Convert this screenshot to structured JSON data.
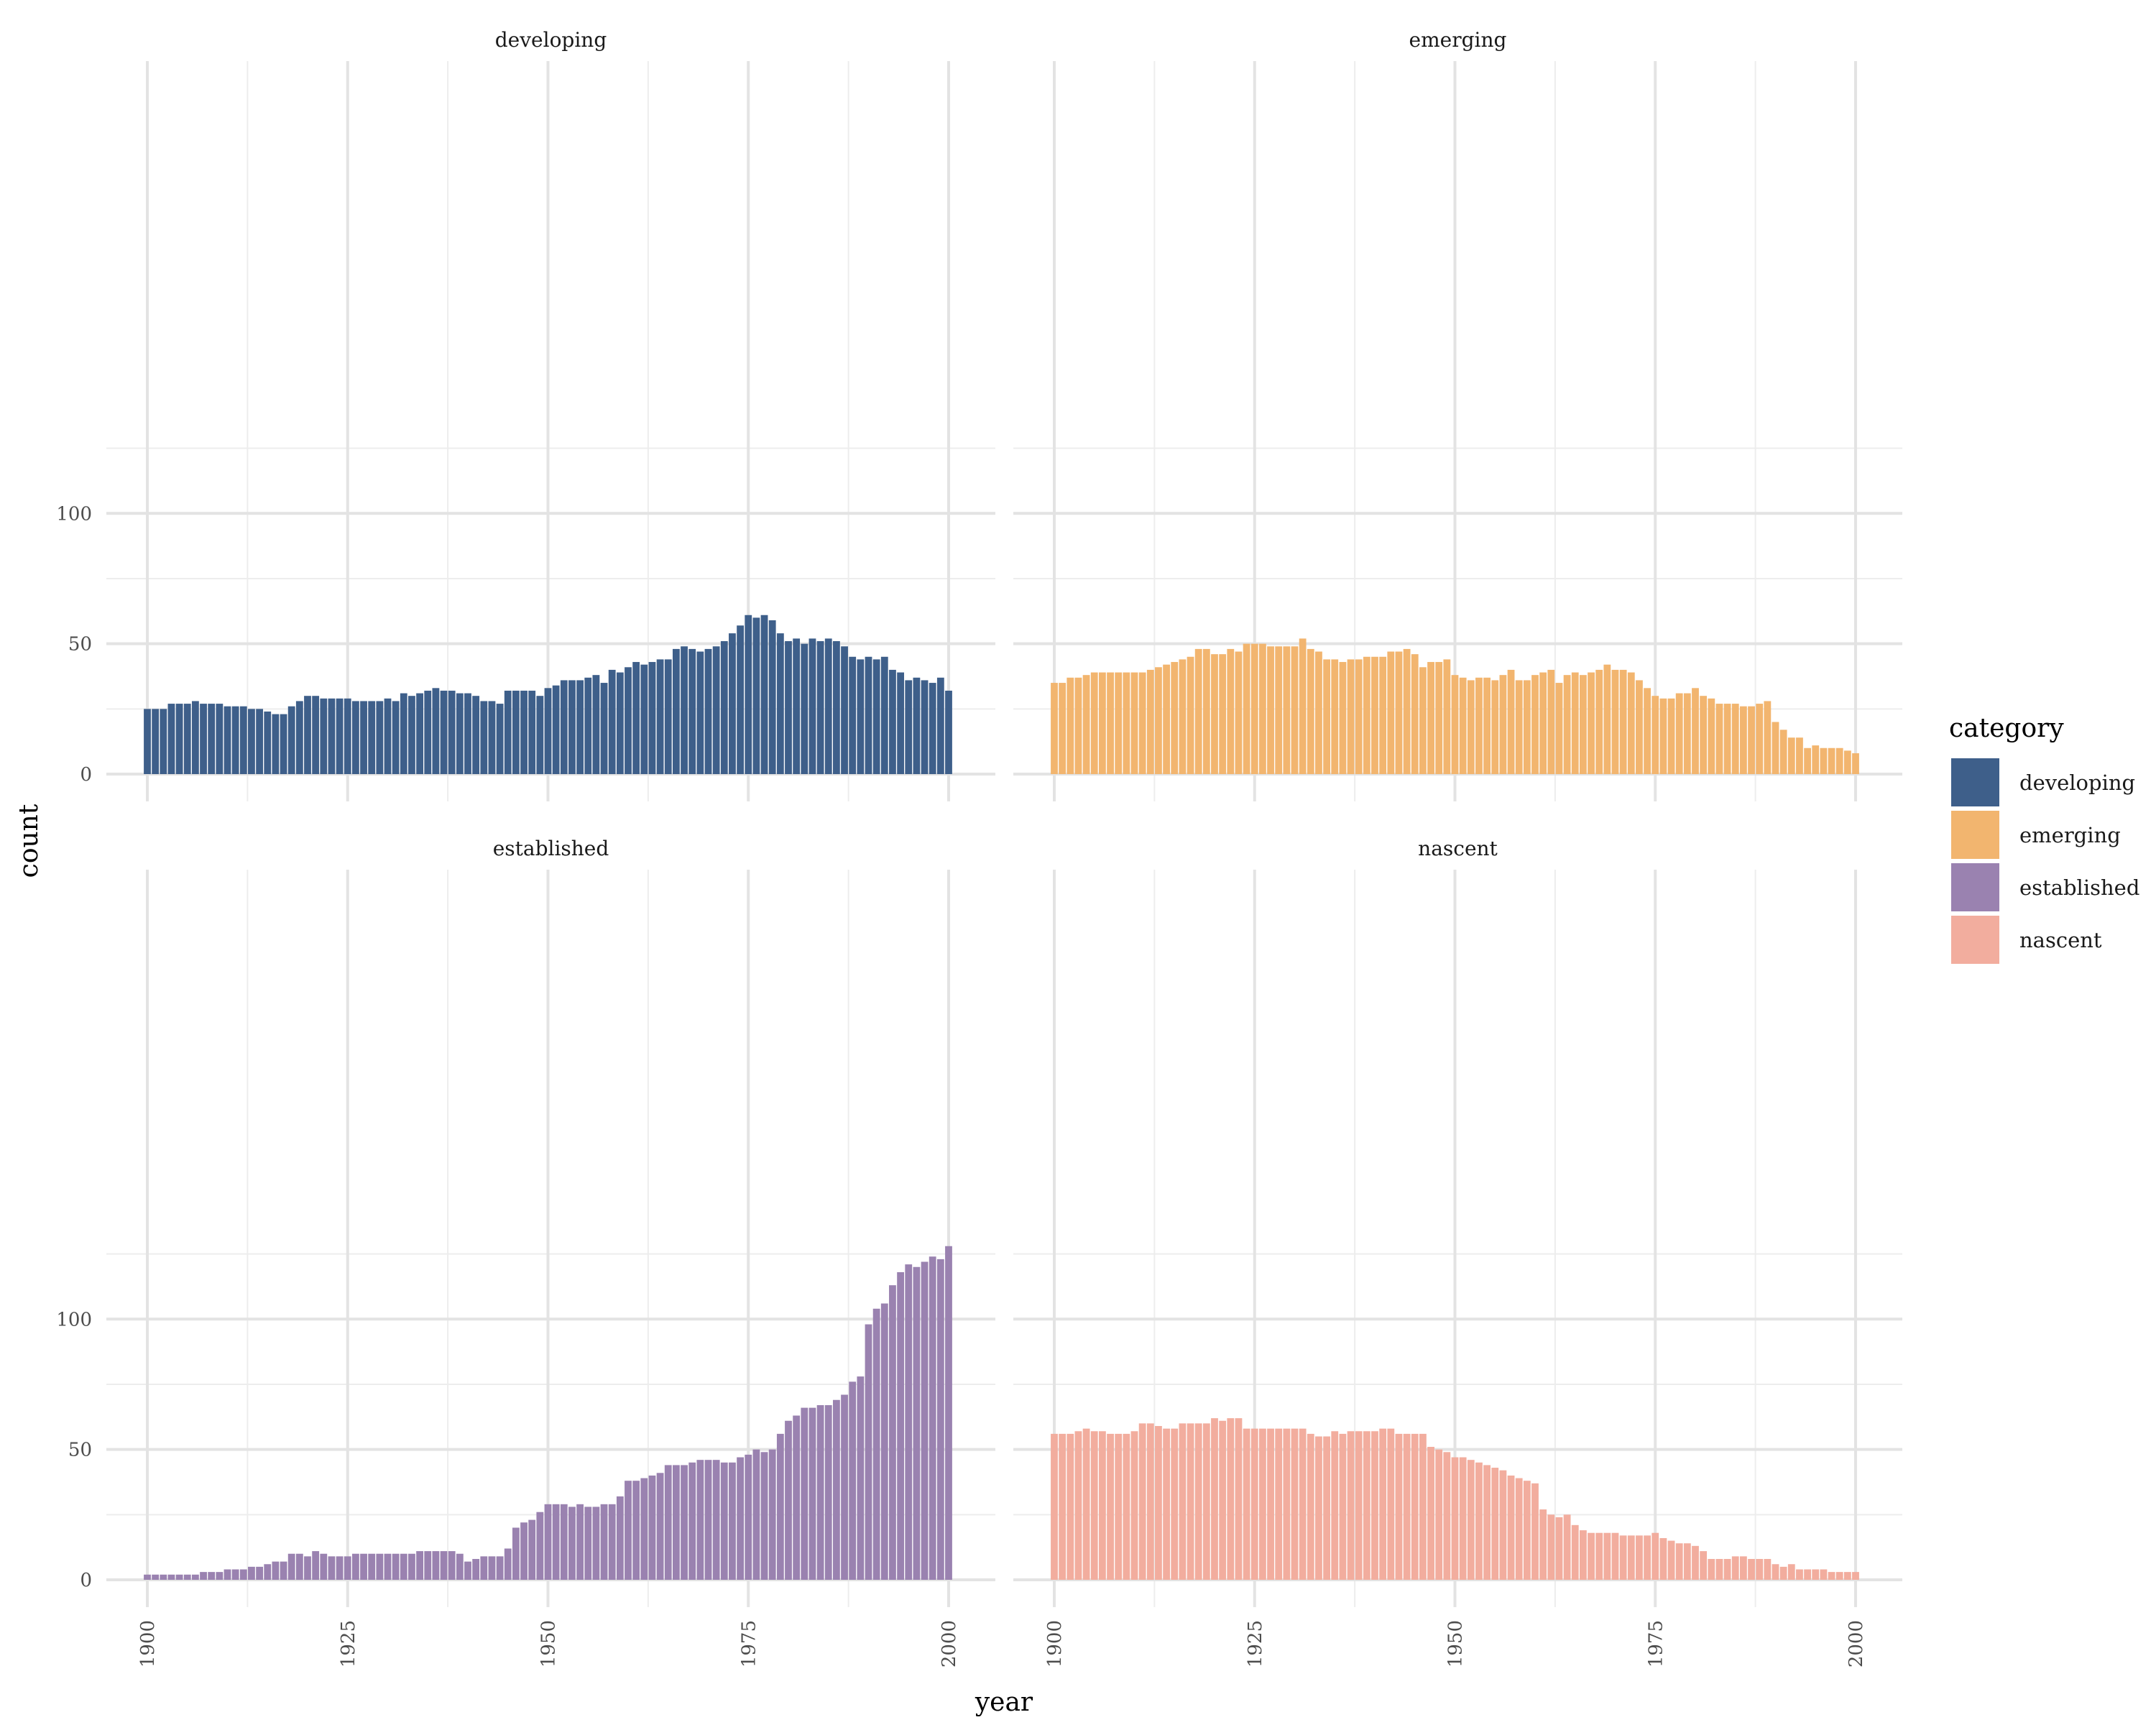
{
  "chart_data": {
    "type": "bar",
    "facet_layout": "2x2 grid",
    "xlabel": "year",
    "ylabel": "count",
    "x_ticks": [
      1900,
      1925,
      1950,
      1975,
      2000
    ],
    "y_ticks": [
      0,
      50,
      100
    ],
    "xlim": [
      1900,
      2000
    ],
    "ylim": [
      0,
      130
    ],
    "grid": true,
    "legend": {
      "title": "category",
      "position": "right",
      "entries": [
        {
          "label": "developing",
          "color": "#3E5F8A"
        },
        {
          "label": "emerging",
          "color": "#F2B56F"
        },
        {
          "label": "established",
          "color": "#9A82B0"
        },
        {
          "label": "nascent",
          "color": "#F2AD9E"
        }
      ]
    },
    "x_start": 1900,
    "panels": [
      {
        "title": "developing",
        "color": "#3E5F8A",
        "values": [
          25,
          25,
          25,
          27,
          27,
          27,
          28,
          27,
          27,
          27,
          26,
          26,
          26,
          25,
          25,
          24,
          23,
          23,
          26,
          28,
          30,
          30,
          29,
          29,
          29,
          29,
          28,
          28,
          28,
          28,
          29,
          28,
          31,
          30,
          31,
          32,
          33,
          32,
          32,
          31,
          31,
          30,
          28,
          28,
          27,
          32,
          32,
          32,
          32,
          30,
          33,
          34,
          36,
          36,
          36,
          37,
          38,
          35,
          40,
          39,
          41,
          43,
          42,
          43,
          44,
          44,
          48,
          49,
          48,
          47,
          48,
          49,
          51,
          54,
          57,
          61,
          60,
          61,
          59,
          54,
          51,
          52,
          50,
          52,
          51,
          52,
          51,
          49,
          45,
          44,
          45,
          44,
          45,
          40,
          39,
          36,
          37,
          36,
          35,
          37,
          32
        ]
      },
      {
        "title": "emerging",
        "color": "#F2B56F",
        "values": [
          35,
          35,
          37,
          37,
          38,
          39,
          39,
          39,
          39,
          39,
          39,
          39,
          40,
          41,
          42,
          43,
          44,
          45,
          48,
          48,
          46,
          46,
          48,
          47,
          50,
          50,
          50,
          49,
          49,
          49,
          49,
          52,
          48,
          47,
          44,
          44,
          43,
          44,
          44,
          45,
          45,
          45,
          47,
          47,
          48,
          46,
          41,
          43,
          43,
          44,
          38,
          37,
          36,
          37,
          37,
          36,
          38,
          40,
          36,
          36,
          38,
          39,
          40,
          35,
          38,
          39,
          38,
          39,
          40,
          42,
          40,
          40,
          39,
          36,
          33,
          30,
          29,
          29,
          31,
          31,
          33,
          30,
          29,
          27,
          27,
          27,
          26,
          26,
          27,
          28,
          20,
          17,
          14,
          14,
          10,
          11,
          10,
          10,
          10,
          9,
          8
        ]
      },
      {
        "title": "established",
        "color": "#9A82B0",
        "values": [
          2,
          2,
          2,
          2,
          2,
          2,
          2,
          3,
          3,
          3,
          4,
          4,
          4,
          5,
          5,
          6,
          7,
          7,
          10,
          10,
          9,
          11,
          10,
          9,
          9,
          9,
          10,
          10,
          10,
          10,
          10,
          10,
          10,
          10,
          11,
          11,
          11,
          11,
          11,
          10,
          7,
          8,
          9,
          9,
          9,
          12,
          20,
          22,
          23,
          26,
          29,
          29,
          29,
          28,
          29,
          28,
          28,
          29,
          29,
          32,
          38,
          38,
          39,
          40,
          41,
          44,
          44,
          44,
          45,
          46,
          46,
          46,
          45,
          45,
          47,
          48,
          50,
          49,
          50,
          56,
          61,
          63,
          66,
          66,
          67,
          67,
          69,
          71,
          76,
          78,
          98,
          104,
          106,
          113,
          118,
          121,
          120,
          122,
          124,
          123,
          128
        ]
      },
      {
        "title": "nascent",
        "color": "#F2AD9E",
        "values": [
          56,
          56,
          56,
          57,
          58,
          57,
          57,
          56,
          56,
          56,
          57,
          60,
          60,
          59,
          58,
          58,
          60,
          60,
          60,
          60,
          62,
          61,
          62,
          62,
          58,
          58,
          58,
          58,
          58,
          58,
          58,
          58,
          56,
          55,
          55,
          57,
          56,
          57,
          57,
          57,
          57,
          58,
          58,
          56,
          56,
          56,
          56,
          51,
          50,
          49,
          47,
          47,
          46,
          45,
          44,
          43,
          42,
          40,
          39,
          38,
          37,
          27,
          25,
          24,
          25,
          21,
          19,
          18,
          18,
          18,
          18,
          17,
          17,
          17,
          17,
          18,
          16,
          15,
          14,
          14,
          13,
          11,
          8,
          8,
          8,
          9,
          9,
          8,
          8,
          8,
          6,
          5,
          6,
          4,
          4,
          4,
          4,
          3,
          3,
          3,
          3
        ]
      }
    ]
  }
}
